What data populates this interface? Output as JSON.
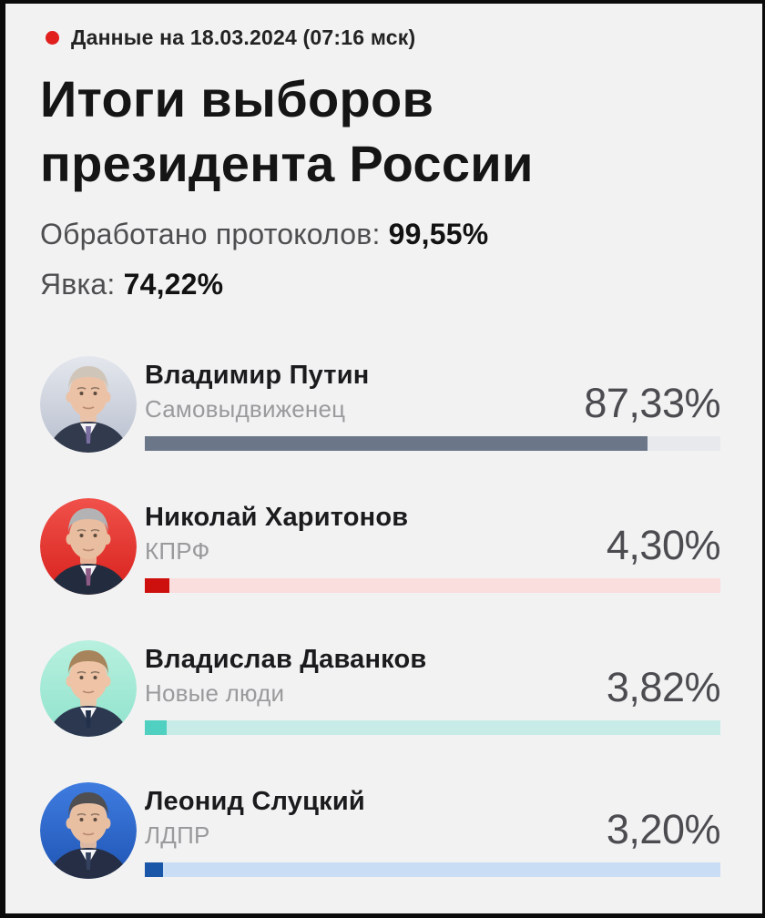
{
  "header": {
    "timestamp": "Данные на 18.03.2024 (07:16 мск)",
    "dot_color": "#e1201e"
  },
  "title": {
    "line1": "Итоги выборов",
    "line2": "президента России"
  },
  "stats": {
    "protocols_label": "Обработано протоколов: ",
    "protocols_value": "99,55%",
    "turnout_label": "Явка: ",
    "turnout_value": "74,22%"
  },
  "candidates": [
    {
      "name": "Владимир Путин",
      "party": "Самовыдвиженец",
      "percent_label": "87,33%",
      "percent": 87.33,
      "colors": {
        "bar": "#6b7789",
        "track": "#e8e9ed",
        "bg_top": "#e4e7ed",
        "bg_bottom": "#b8bfce",
        "hair": "#cfc5b8",
        "suit": "#323a4e",
        "tie": "#7a6fa0",
        "skin": "#ecc2a6"
      }
    },
    {
      "name": "Николай Харитонов",
      "party": "КПРФ",
      "percent_label": "4,30%",
      "percent": 4.3,
      "colors": {
        "bar": "#cd100d",
        "track": "#fadddd",
        "bg_top": "#f0514a",
        "bg_bottom": "#d8211d",
        "hair": "#b3b3b5",
        "suit": "#232c3f",
        "tie": "#8e5a86",
        "skin": "#e9bd9f"
      }
    },
    {
      "name": "Владислав Даванков",
      "party": "Новые люди",
      "percent_label": "3,82%",
      "percent": 3.82,
      "colors": {
        "bar": "#4fd0c0",
        "track": "#c7ece7",
        "bg_top": "#b8f0de",
        "bg_bottom": "#8fe3cd",
        "hair": "#a8845c",
        "suit": "#2c3850",
        "tie": "#22304a",
        "skin": "#eec3a6"
      }
    },
    {
      "name": "Леонид Слуцкий",
      "party": "ЛДПР",
      "percent_label": "3,20%",
      "percent": 3.2,
      "colors": {
        "bar": "#1a57a8",
        "track": "#c9ddf5",
        "bg_top": "#3f7ce0",
        "bg_bottom": "#1f55b4",
        "hair": "#4f4f52",
        "suit": "#252e44",
        "tie": "#33415e",
        "skin": "#e9bfa2"
      }
    }
  ],
  "chart_data": {
    "type": "bar",
    "title": "Итоги выборов президента России",
    "subtitle": "Данные на 18.03.2024 (07:16 мск)",
    "categories": [
      "Владимир Путин",
      "Николай Харитонов",
      "Владислав Даванков",
      "Леонид Слуцкий"
    ],
    "series_labels": [
      "Самовыдвиженец",
      "КПРФ",
      "Новые люди",
      "ЛДПР"
    ],
    "values": [
      87.33,
      4.3,
      3.82,
      3.2
    ],
    "value_labels": [
      "87,33%",
      "4,30%",
      "3,82%",
      "3,20%"
    ],
    "unit": "%",
    "xlim": [
      0,
      100
    ],
    "annotations": [
      "Обработано протоколов: 99,55%",
      "Явка: 74,22%"
    ],
    "bar_colors": [
      "#6b7789",
      "#cd100d",
      "#4fd0c0",
      "#1a57a8"
    ]
  }
}
